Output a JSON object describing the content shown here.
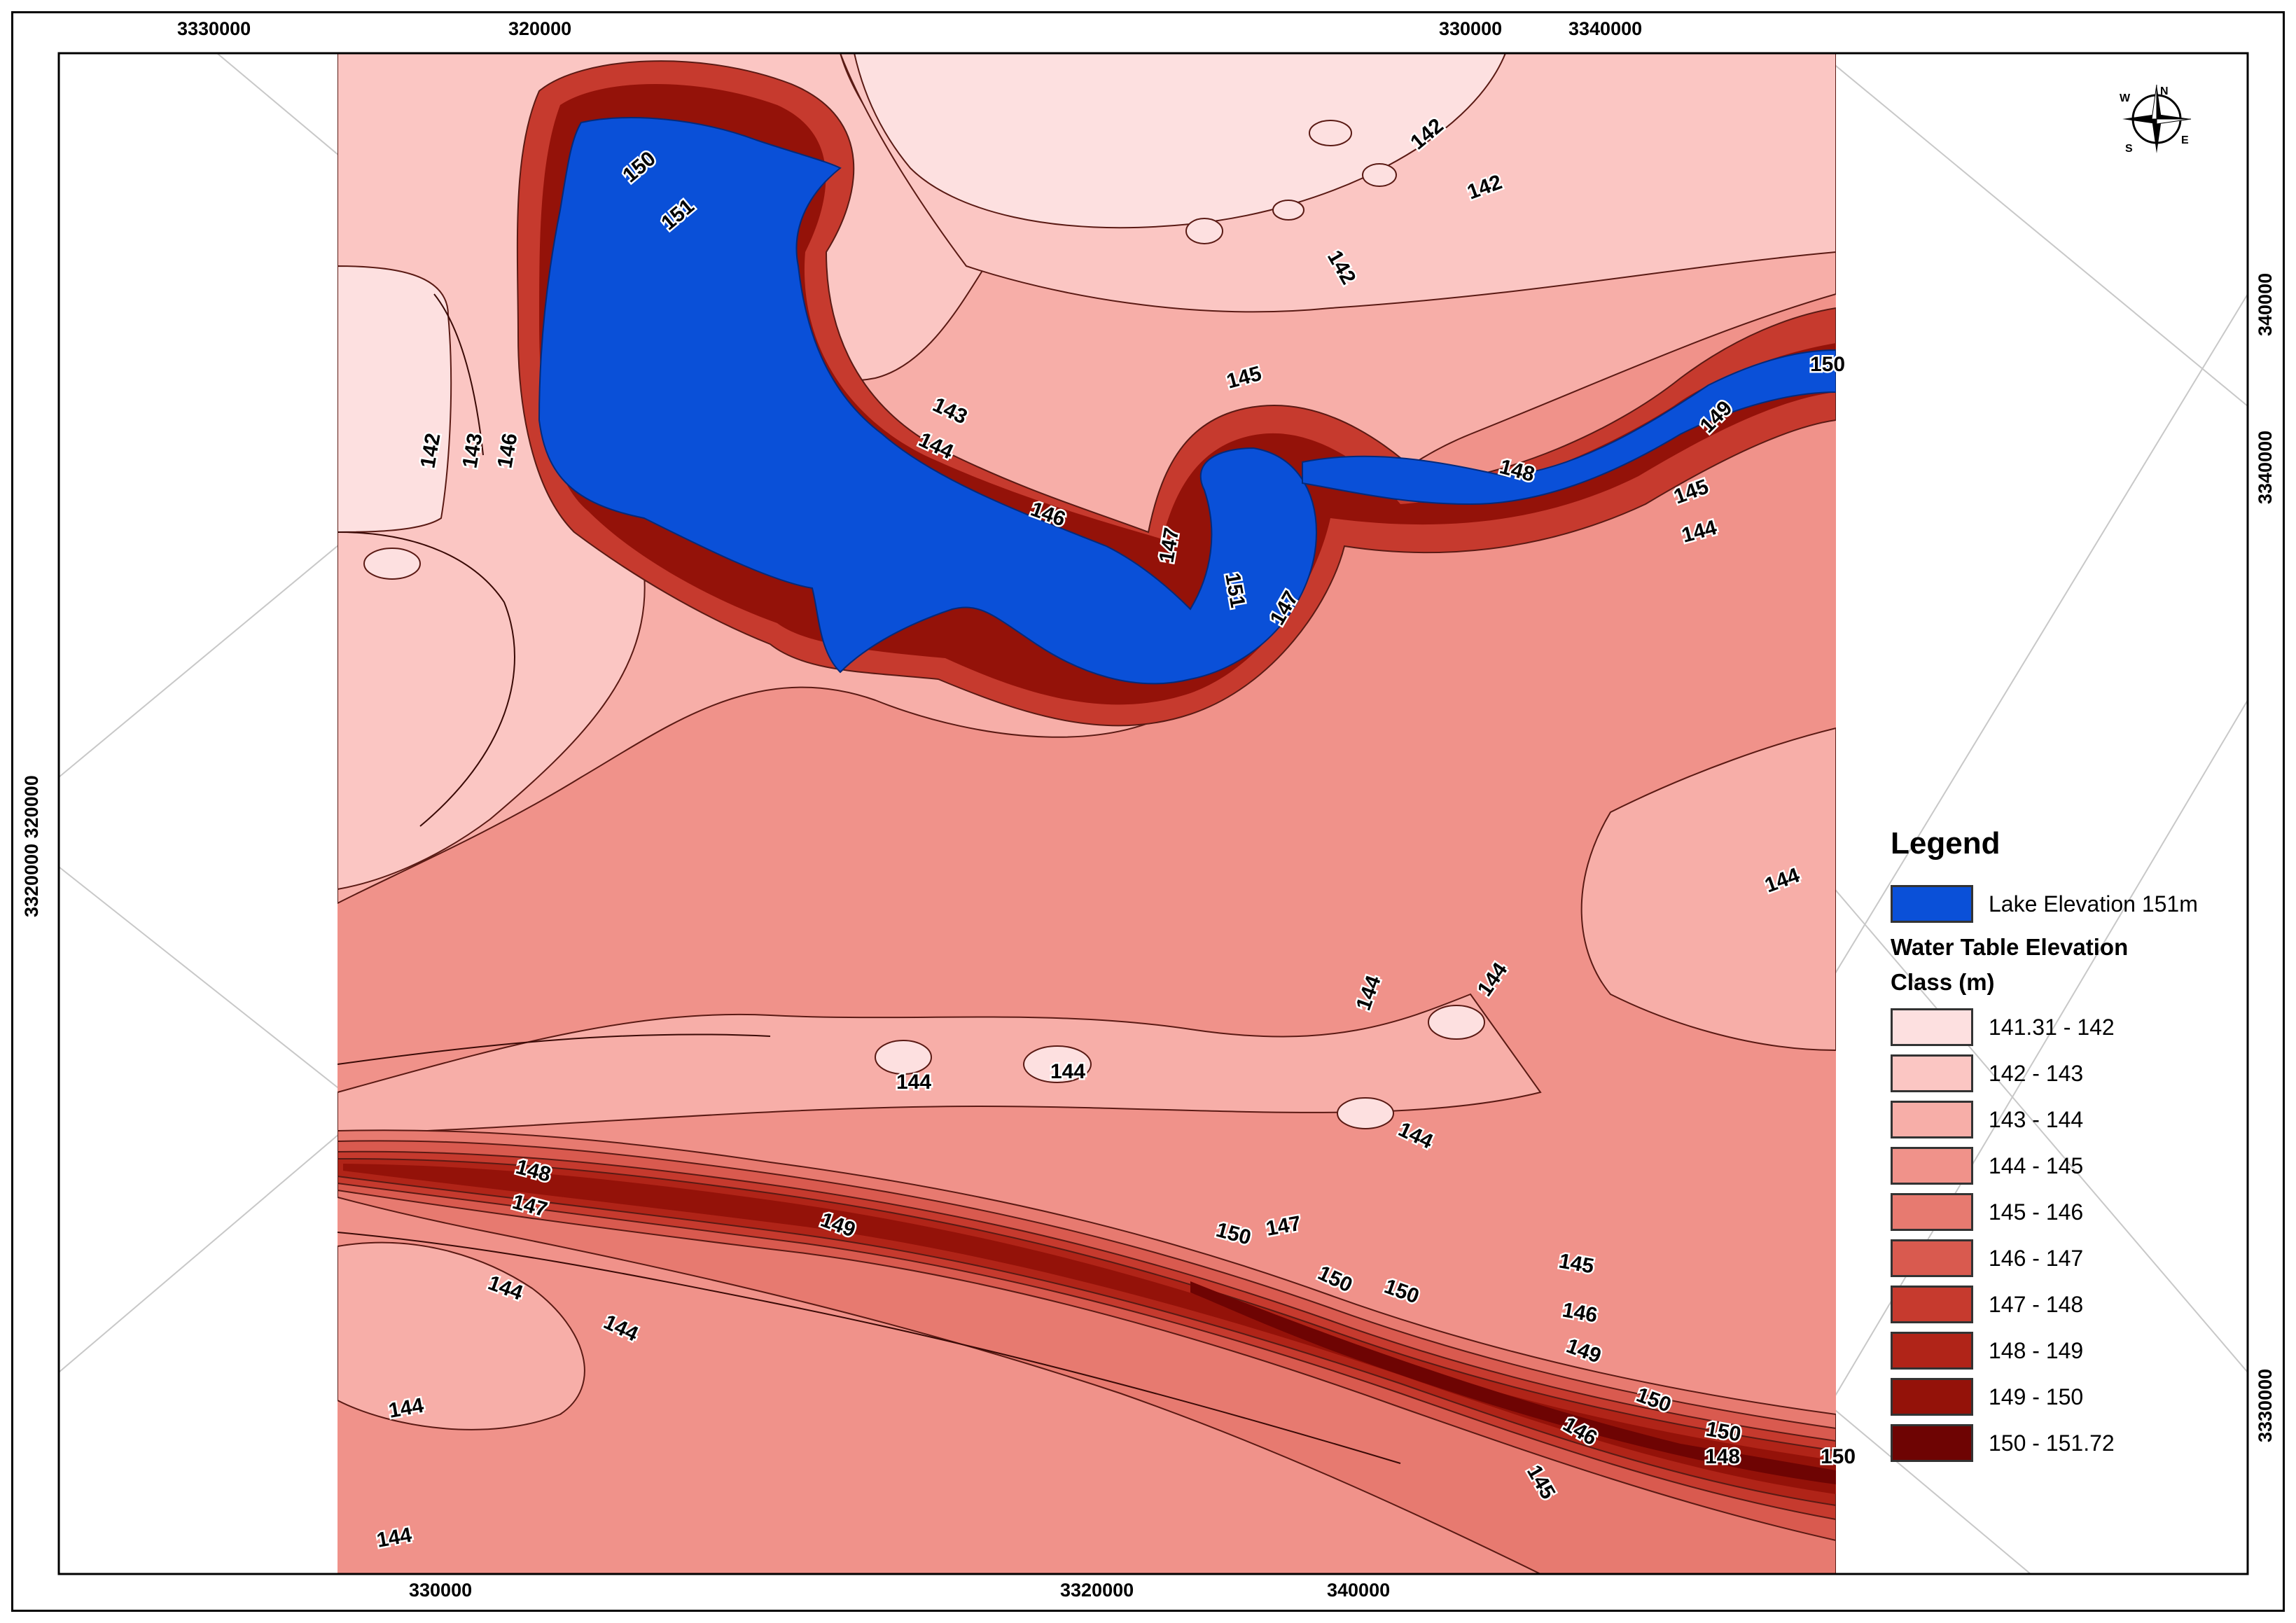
{
  "map": {
    "lake": {
      "name": "Lake Elevation 151m",
      "color": "#0a50d8"
    },
    "coordinates": {
      "top": [
        "3330000",
        "320000",
        "330000",
        "3340000"
      ],
      "bottom": [
        "330000",
        "3320000",
        "340000"
      ],
      "left": [
        "3320000  320000"
      ],
      "right": [
        "340000",
        "3340000",
        "3330000"
      ]
    },
    "contour_labels": [
      "150",
      "151",
      "142",
      "143",
      "146",
      "143",
      "144",
      "146",
      "145",
      "147",
      "151",
      "147",
      "148",
      "149",
      "145",
      "144",
      "150",
      "142",
      "142",
      "142",
      "144",
      "144",
      "144",
      "144",
      "144",
      "144",
      "148",
      "147",
      "149",
      "150",
      "147",
      "150",
      "150",
      "145",
      "146",
      "149",
      "150",
      "150",
      "148",
      "150",
      "146",
      "145",
      "144",
      "144",
      "144",
      "144"
    ]
  },
  "legend": {
    "title": "Legend",
    "lake_label": "Lake Elevation 151m",
    "subtitle_1": "Water Table Elevation",
    "subtitle_2": "Class (m)",
    "classes": [
      {
        "label": "141.31 - 142",
        "color": "#fde0e0"
      },
      {
        "label": "142 - 143",
        "color": "#fbc6c3"
      },
      {
        "label": "143 - 144",
        "color": "#f7aea8"
      },
      {
        "label": "144 - 145",
        "color": "#f0928a"
      },
      {
        "label": "145 - 146",
        "color": "#e77a70"
      },
      {
        "label": "146 - 147",
        "color": "#d95a4f"
      },
      {
        "label": "147 - 148",
        "color": "#c63a2e"
      },
      {
        "label": "148 - 149",
        "color": "#b02418"
      },
      {
        "label": "149 - 150",
        "color": "#941209"
      },
      {
        "label": "150 - 151.72",
        "color": "#6e0403"
      }
    ]
  },
  "north_arrow": {
    "icon": "compass-rose-icon",
    "letters": [
      "N",
      "E",
      "S",
      "W"
    ]
  }
}
